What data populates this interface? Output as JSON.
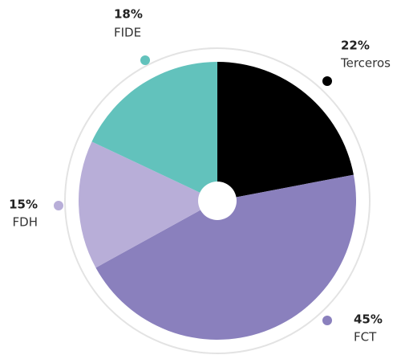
{
  "chart_data": {
    "type": "pie",
    "categories": [
      "Terceros",
      "FCT",
      "FDH",
      "FIDE"
    ],
    "values": [
      22,
      45,
      15,
      18
    ],
    "value_labels": [
      "22%",
      "45%",
      "15%",
      "18%"
    ],
    "colors": [
      "#000000",
      "#8a80bd",
      "#b8aed8",
      "#62c2bc"
    ]
  }
}
